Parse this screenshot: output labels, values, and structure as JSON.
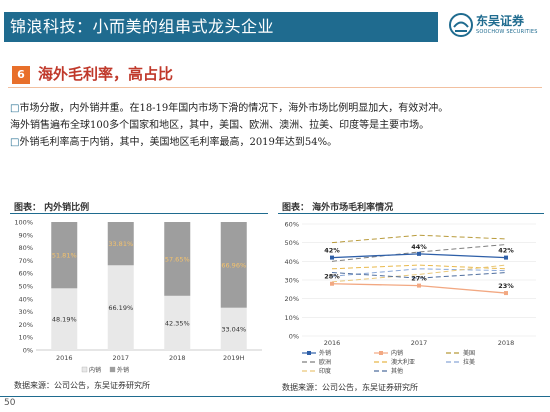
{
  "header": {
    "title": "锦浪科技：小而美的组串式龙头企业",
    "brand_cn": "东吴证券",
    "brand_en": "SOOCHOW SECURITIES"
  },
  "section": {
    "number": "6",
    "title": "海外毛利率，高占比"
  },
  "body": {
    "line1": "市场分散，内外销并重。在18-19年国内市场下滑的情况下，海外市场比例明显加大，有效对冲。",
    "line2": "海外销售遍布全球100多个国家和地区，其中，美国、欧洲、澳洲、拉美、印度等是主要市场。",
    "line3": "外销毛利率高于内销，其中，美国地区毛利率最高，2019年达到54%。"
  },
  "figures": {
    "left_title": "图表： 内外销比例",
    "right_title": "图表： 海外市场毛利率情况",
    "left_source": "数据来源：公司公告，东吴证券研究所",
    "right_source": "数据来源：公司公告，东吴证券研究所",
    "source_label": "数据来源："
  },
  "page_number": "50",
  "colors": {
    "primary": "#1f6b8f",
    "accent": "#e86f2a",
    "red": "#c0392b"
  },
  "chart_data": [
    {
      "type": "bar",
      "stacked": true,
      "categories": [
        "2016",
        "2017",
        "2018",
        "2019H"
      ],
      "series": [
        {
          "name": "内销",
          "values": [
            48.19,
            66.19,
            42.35,
            33.04
          ],
          "labels": [
            "48.19%",
            "66.19%",
            "42.35%",
            "33.04%"
          ]
        },
        {
          "name": "外销",
          "values": [
            51.81,
            33.81,
            57.65,
            66.96
          ],
          "labels": [
            "51.81%",
            "33.81%",
            "57.65%",
            "66.96%"
          ]
        }
      ],
      "yticks": [
        "0%",
        "10%",
        "20%",
        "30%",
        "40%",
        "50%",
        "60%",
        "70%",
        "80%",
        "90%",
        "100%"
      ],
      "ylim": [
        0,
        100
      ],
      "legend_position": "bottom"
    },
    {
      "type": "line",
      "categories": [
        "2016",
        "2017",
        "2018"
      ],
      "series": [
        {
          "name": "外销",
          "values": [
            42,
            44,
            42
          ],
          "labels": [
            "42%",
            "44%",
            "42%"
          ],
          "color": "#2e5fa8",
          "dash": ""
        },
        {
          "name": "内销",
          "values": [
            28,
            27,
            23
          ],
          "labels": [
            "28%",
            "27%",
            "23%"
          ],
          "color": "#f2a882",
          "dash": ""
        },
        {
          "name": "美国",
          "values": [
            50,
            54,
            52
          ],
          "color": "#b89a3a",
          "dash": "5,3"
        },
        {
          "name": "欧洲",
          "values": [
            40,
            45,
            49
          ],
          "color": "#7f7f7f",
          "dash": "5,3"
        },
        {
          "name": "澳大利亚",
          "values": [
            36,
            38,
            36
          ],
          "color": "#e8b84a",
          "dash": "5,3"
        },
        {
          "name": "拉美",
          "values": [
            32,
            36,
            35
          ],
          "color": "#8aa8d8",
          "dash": "5,3"
        },
        {
          "name": "印度",
          "values": [
            29,
            33,
            38
          ],
          "color": "#e9c87a",
          "dash": "5,3"
        },
        {
          "name": "其他",
          "values": [
            34,
            31,
            34
          ],
          "color": "#4f6e9e",
          "dash": "5,3"
        }
      ],
      "yticks": [
        "0%",
        "10%",
        "20%",
        "30%",
        "40%",
        "50%",
        "60%"
      ],
      "ylim": [
        0,
        60
      ],
      "legend_position": "bottom"
    }
  ]
}
